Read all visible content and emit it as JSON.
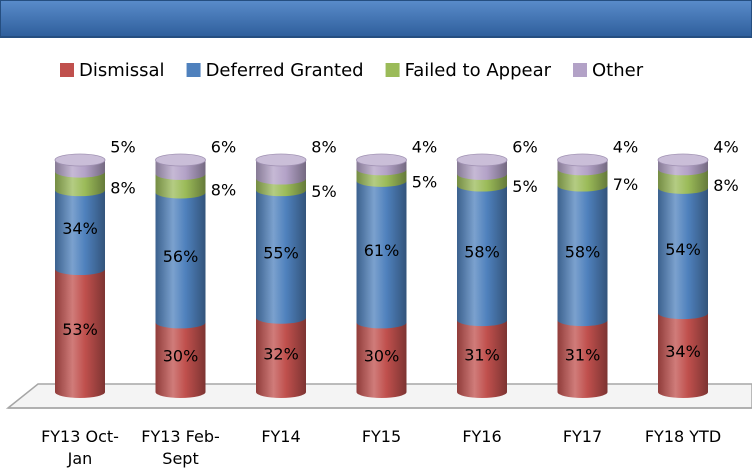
{
  "chart_data": {
    "type": "bar",
    "stacked": true,
    "categories": [
      "FY13 Oct-Jan",
      "FY13 Feb-Sept",
      "FY14",
      "FY15",
      "FY16",
      "FY17",
      "FY18 YTD"
    ],
    "series": [
      {
        "name": "Dismissal",
        "color": "#c0504d",
        "values": [
          53,
          30,
          32,
          30,
          31,
          31,
          34
        ],
        "value_labels": [
          "53%",
          "30%",
          "32%",
          "30%",
          "31%",
          "31%",
          "34%"
        ]
      },
      {
        "name": "Deferred Granted",
        "color": "#4f81bd",
        "values": [
          34,
          56,
          55,
          61,
          58,
          58,
          54
        ],
        "value_labels": [
          "34%",
          "56%",
          "55%",
          "61%",
          "58%",
          "58%",
          "54%"
        ]
      },
      {
        "name": "Failed to Appear",
        "color": "#9bbb59",
        "values": [
          8,
          8,
          5,
          5,
          5,
          7,
          8
        ],
        "value_labels": [
          "8%",
          "8%",
          "5%",
          "5%",
          "5%",
          "7%",
          "8%"
        ]
      },
      {
        "name": "Other",
        "color": "#b3a2c7",
        "values": [
          5,
          6,
          8,
          4,
          6,
          4,
          4
        ],
        "value_labels": [
          "5%",
          "6%",
          "8%",
          "4%",
          "6%",
          "4%",
          "4%"
        ]
      }
    ],
    "ylim": [
      0,
      100
    ],
    "legend": "top"
  }
}
